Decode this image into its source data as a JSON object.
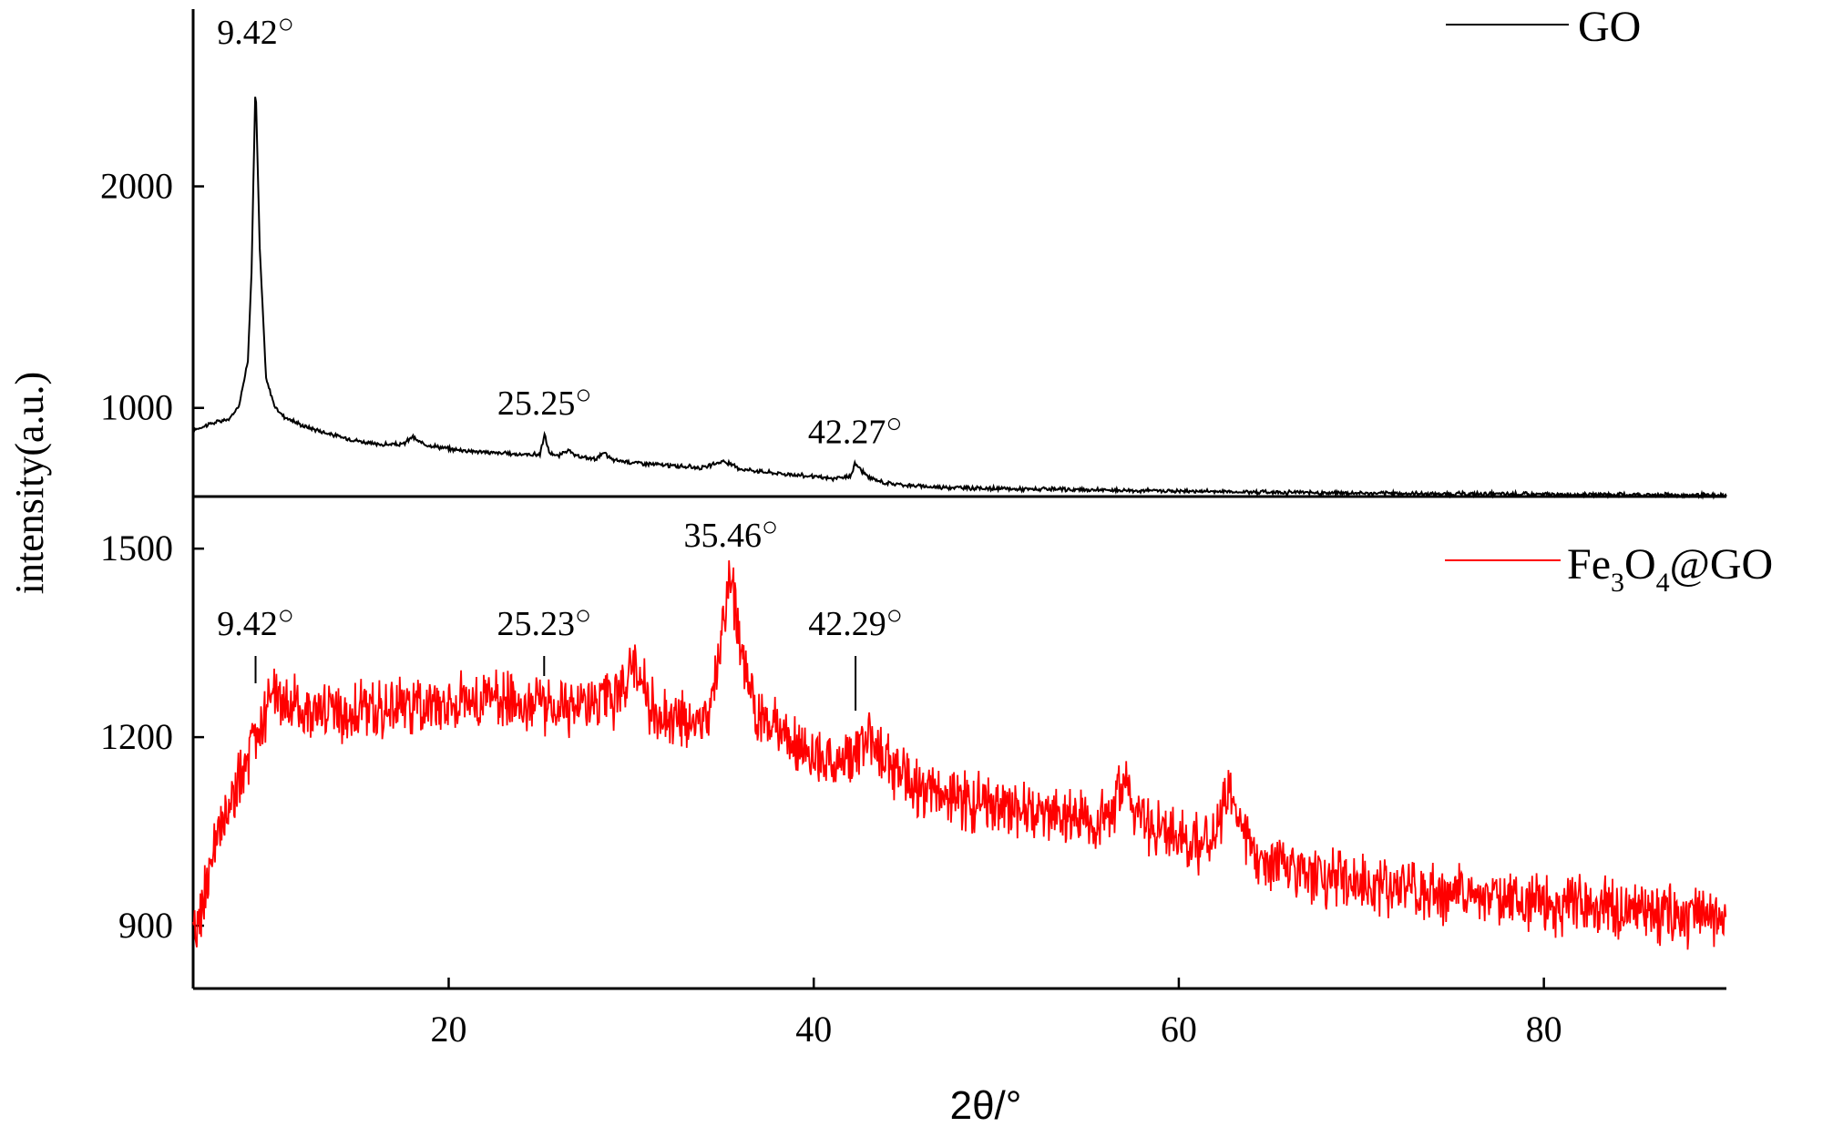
{
  "colors": {
    "go": "#000000",
    "fe3o4_go": "#ff0000",
    "axis": "#000000"
  },
  "chart_data": {
    "type": "line",
    "layout": "stacked-panels",
    "xlabel": "2θ/°",
    "ylabel": "intensity(a.u.)",
    "xlim": [
      6,
      90
    ],
    "xticks": [
      20,
      40,
      60,
      80
    ],
    "x_tick_labels": [
      "20",
      "40",
      "60",
      "80"
    ],
    "degree_mark": "○",
    "panels": [
      {
        "series_name": "GO",
        "color": "#000000",
        "ylim": [
          600,
          2800
        ],
        "yticks": [
          1000,
          2000
        ],
        "y_tick_labels": [
          "1000",
          "2000"
        ],
        "legend_position": "top-right",
        "x": [
          6,
          7,
          8,
          8.5,
          9,
          9.2,
          9.42,
          9.65,
          10,
          10.5,
          11,
          12,
          14,
          16,
          17.5,
          18,
          18.5,
          20,
          22,
          24,
          25,
          25.25,
          25.5,
          26,
          26.5,
          27,
          28,
          28.5,
          29,
          30,
          32,
          34,
          35,
          36,
          38,
          40,
          41,
          42,
          42.27,
          42.6,
          43,
          44,
          46,
          50,
          55,
          60,
          65,
          70,
          75,
          80,
          85,
          90
        ],
        "y": [
          900,
          930,
          950,
          1010,
          1210,
          1620,
          2480,
          1720,
          1130,
          1000,
          960,
          920,
          870,
          835,
          835,
          870,
          840,
          815,
          800,
          790,
          790,
          880,
          800,
          780,
          810,
          780,
          770,
          795,
          765,
          755,
          740,
          730,
          760,
          725,
          705,
          690,
          680,
          690,
          750,
          720,
          685,
          660,
          645,
          635,
          630,
          625,
          620,
          615,
          612,
          610,
          608,
          605
        ],
        "annotations": [
          {
            "text": "9.42",
            "x": 9.42
          },
          {
            "text": "25.25",
            "x": 25.25
          },
          {
            "text": "42.27",
            "x": 42.27
          }
        ]
      },
      {
        "series_name": "Fe3O4@GO",
        "legend_parts": {
          "p1": "Fe",
          "s1": "3",
          "p2": "O",
          "s2": "4",
          "p3": "@GO"
        },
        "color": "#ff0000",
        "ylim": [
          800,
          1580
        ],
        "yticks": [
          900,
          1200,
          1500
        ],
        "y_tick_labels": [
          "900",
          "1200",
          "1500"
        ],
        "legend_position": "top-right",
        "x": [
          6,
          7,
          8,
          9,
          9.42,
          10,
          10.5,
          11,
          12,
          14,
          16,
          18,
          20,
          22,
          24,
          25.23,
          26,
          27,
          28,
          29,
          30,
          30.5,
          31,
          32,
          33,
          34,
          34.5,
          35,
          35.46,
          35.9,
          36.5,
          37,
          38,
          39,
          40,
          41,
          42.29,
          43,
          44,
          45,
          46,
          48,
          50,
          52,
          54,
          56,
          57,
          58,
          60,
          61,
          62,
          62.8,
          63.5,
          64,
          66,
          68,
          70,
          72,
          75,
          78,
          80,
          82,
          84,
          86,
          88,
          90
        ],
        "y": [
          870,
          1000,
          1090,
          1160,
          1200,
          1240,
          1270,
          1250,
          1245,
          1240,
          1245,
          1250,
          1255,
          1260,
          1260,
          1255,
          1250,
          1250,
          1248,
          1250,
          1310,
          1300,
          1250,
          1230,
          1220,
          1230,
          1280,
          1380,
          1470,
          1360,
          1260,
          1230,
          1215,
          1190,
          1170,
          1155,
          1180,
          1200,
          1160,
          1130,
          1110,
          1100,
          1090,
          1085,
          1075,
          1070,
          1120,
          1060,
          1040,
          1030,
          1050,
          1120,
          1060,
          1020,
          990,
          980,
          970,
          960,
          950,
          945,
          935,
          930,
          925,
          920,
          915,
          910
        ],
        "annotations": [
          {
            "text": "9.42",
            "x": 9.42
          },
          {
            "text": "25.23",
            "x": 25.23
          },
          {
            "text": "35.46",
            "x": 35.46
          },
          {
            "text": "42.29",
            "x": 42.29
          }
        ]
      }
    ]
  }
}
